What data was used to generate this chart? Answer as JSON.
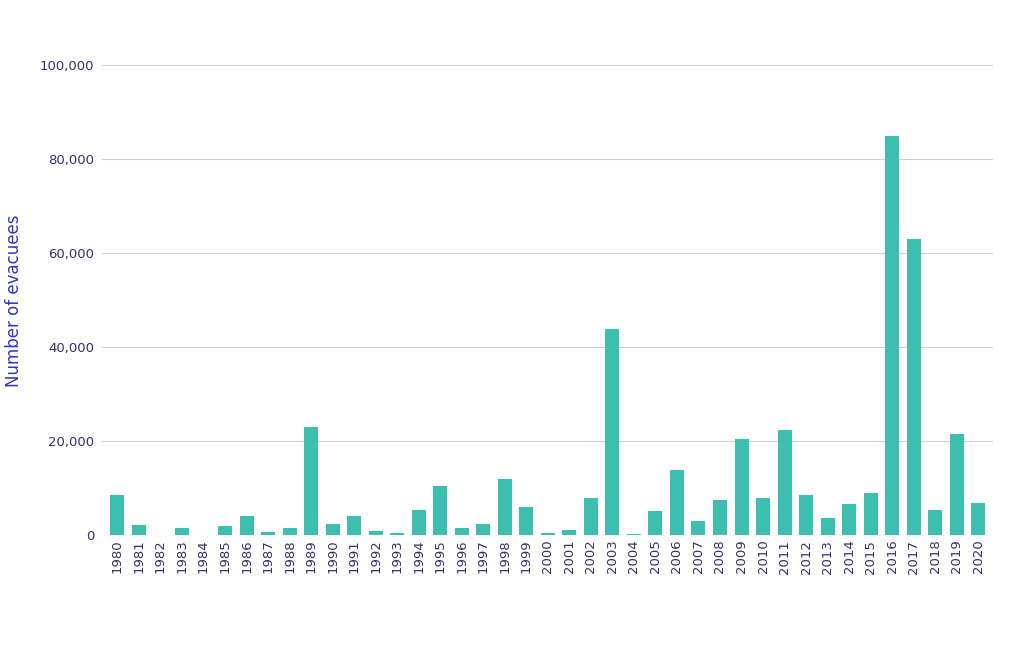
{
  "years": [
    1980,
    1981,
    1982,
    1983,
    1984,
    1985,
    1986,
    1987,
    1988,
    1989,
    1990,
    1991,
    1992,
    1993,
    1994,
    1995,
    1996,
    1997,
    1998,
    1999,
    2000,
    2001,
    2002,
    2003,
    2004,
    2005,
    2006,
    2007,
    2008,
    2009,
    2010,
    2011,
    2012,
    2013,
    2014,
    2015,
    2016,
    2017,
    2018,
    2019,
    2020
  ],
  "values": [
    8500,
    2200,
    200,
    1500,
    100,
    2000,
    4200,
    800,
    1500,
    23000,
    2500,
    4200,
    1000,
    500,
    5500,
    10500,
    1500,
    2500,
    12000,
    6000,
    500,
    1200,
    8000,
    44000,
    400,
    5200,
    14000,
    3000,
    7500,
    20500,
    8000,
    22500,
    8500,
    3800,
    6700,
    9000,
    85000,
    63000,
    5500,
    21500,
    7000
  ],
  "bar_color": "#3dbfb0",
  "ylabel": "Number of evacuees",
  "ylabel_color": "#3333cc",
  "background_color": "#ffffff",
  "grid_color": "#d0d0d0",
  "tick_color": "#333366",
  "tick_fontsize": 9.5,
  "ylabel_fontsize": 12,
  "ylim": [
    0,
    100000
  ],
  "yticks": [
    0,
    20000,
    40000,
    60000,
    80000,
    100000
  ],
  "bar_width": 0.65
}
